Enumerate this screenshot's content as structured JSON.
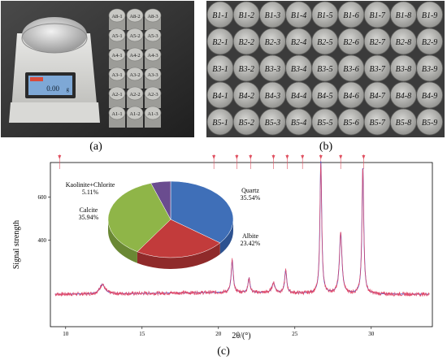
{
  "captions": {
    "a": "(a)",
    "b": "(b)",
    "c": "(c)"
  },
  "photo_a": {
    "scale_display": "0.00",
    "scale_unit": "g",
    "sample_labels": [
      [
        "A8-1",
        "A8-2",
        "A8-3"
      ],
      [
        "A5-1",
        "A5-2",
        "A5-3"
      ],
      [
        "A4-1",
        "A4-2",
        "A4-3"
      ],
      [
        "A3-1",
        "A3-2",
        "A3-3"
      ],
      [
        "A2-1",
        "A2-2",
        "A2-3"
      ],
      [
        "A1-1",
        "A1-2",
        "A1-3"
      ]
    ]
  },
  "photo_b": {
    "sample_labels": [
      [
        "B1-1",
        "B1-2",
        "B1-3",
        "B1-4",
        "B1-5",
        "B1-6",
        "B1-7",
        "B1-8",
        "B1-9"
      ],
      [
        "B2-1",
        "B2-2",
        "B2-3",
        "B2-4",
        "B2-5",
        "B2-6",
        "B2-7",
        "B2-8",
        "B2-9"
      ],
      [
        "B3-1",
        "B3-2",
        "B3-3",
        "B3-4",
        "B3-5",
        "B3-6",
        "B3-7",
        "B3-8",
        "B3-9"
      ],
      [
        "B4-1",
        "B4-2",
        "B4-3",
        "B4-4",
        "B4-5",
        "B4-6",
        "B4-7",
        "B4-8",
        "B4-9"
      ],
      [
        "B5-1",
        "B5-2",
        "B5-3",
        "B5-4",
        "B5-5",
        "B5-6",
        "B5-7",
        "B5-8",
        "B5-9"
      ]
    ]
  },
  "chart_data": [
    {
      "type": "line",
      "xlabel": "2θ/(°)",
      "ylabel": "Signal strength",
      "xlim": [
        9,
        34
      ],
      "ylim": [
        0,
        760
      ],
      "x_ticks": [
        10,
        15,
        20,
        25,
        30
      ],
      "y_ticks": [
        400,
        600
      ],
      "baseline": 150,
      "series": [
        {
          "peaks": [
            {
              "x": 12.4,
              "height": 45,
              "width": 0.2
            },
            {
              "x": 20.9,
              "height": 150,
              "width": 0.08
            },
            {
              "x": 22.0,
              "height": 65,
              "width": 0.08
            },
            {
              "x": 23.6,
              "height": 45,
              "width": 0.12
            },
            {
              "x": 24.4,
              "height": 105,
              "width": 0.08
            },
            {
              "x": 26.7,
              "height": 610,
              "width": 0.07
            },
            {
              "x": 28.0,
              "height": 280,
              "width": 0.1
            },
            {
              "x": 29.45,
              "height": 590,
              "width": 0.07
            }
          ]
        }
      ],
      "reference_markers": [
        9.6,
        19.7,
        21.2,
        22.1,
        23.6,
        24.5,
        25.5,
        26.7,
        28.0,
        29.5
      ]
    },
    {
      "type": "pie",
      "labels": [
        "Quartz",
        "Albite",
        "Calcite",
        "Kaolinite+Chlorite"
      ],
      "values": [
        35.54,
        23.42,
        35.94,
        5.11
      ],
      "value_labels": [
        "35.54%",
        "23.42%",
        "35.94%",
        "5.11%"
      ],
      "colors": [
        "#3f6fb8",
        "#c23b3b",
        "#8fb548",
        "#6a4c8f"
      ],
      "side_colors": [
        "#2d5290",
        "#8f2a2a",
        "#6a8834",
        "#4d3568"
      ]
    }
  ]
}
